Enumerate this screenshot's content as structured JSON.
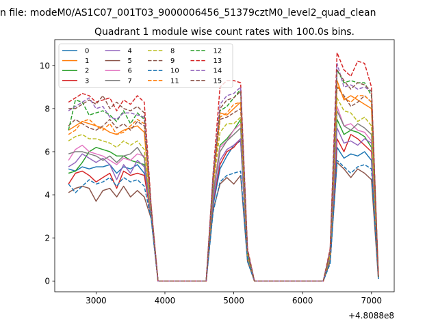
{
  "figure": {
    "suptitle": "n file: modeM0/AS1C07_001T03_9000006456_51379cztM0_level2_quad_clean",
    "title": "Quadrant 1 module wise count rates with 100.0s bins.",
    "offset_label": "+4.8088e8"
  },
  "chart_data": {
    "type": "line",
    "title": "Quadrant 1 module wise count rates with 100.0s bins.",
    "xlabel": "",
    "ylabel": "",
    "x_offset": 480880000,
    "xlim": [
      2400,
      7330
    ],
    "ylim": [
      -0.5,
      11.2
    ],
    "xticks": [
      3000,
      4000,
      5000,
      6000,
      7000
    ],
    "yticks": [
      0,
      2,
      4,
      6,
      8,
      10
    ],
    "xtick_labels": [
      "3000",
      "4000",
      "5000",
      "6000",
      "7000"
    ],
    "ytick_labels": [
      "0",
      "2",
      "4",
      "6",
      "8",
      "10"
    ],
    "grid": false,
    "legend_placement": "upper-left",
    "legend_columns": 4,
    "x": [
      2600,
      2700,
      2800,
      2900,
      3000,
      3100,
      3200,
      3300,
      3400,
      3500,
      3600,
      3700,
      3800,
      3900,
      4000,
      4100,
      4200,
      4300,
      4400,
      4500,
      4600,
      4700,
      4800,
      4900,
      5000,
      5100,
      5200,
      5300,
      5400,
      5500,
      5600,
      5700,
      5800,
      5900,
      6000,
      6100,
      6200,
      6300,
      6400,
      6500,
      6600,
      6700,
      6800,
      6900,
      7000,
      7100
    ],
    "series": [
      {
        "name": "0",
        "color": "#1f77b4",
        "dash": "solid",
        "values": [
          5.2,
          5.1,
          5.3,
          5.2,
          5.3,
          5.3,
          5.4,
          5.0,
          5.3,
          5.2,
          5.4,
          5.0,
          3.0,
          0,
          0,
          0,
          0,
          0,
          0,
          0,
          0,
          3.5,
          5.2,
          5.8,
          6.3,
          6.5,
          1.0,
          0,
          0,
          0,
          0,
          0,
          0,
          0,
          0,
          0,
          0,
          0,
          1.0,
          6.2,
          5.7,
          5.9,
          5.8,
          6.0,
          5.6,
          0.2
        ]
      },
      {
        "name": "1",
        "color": "#ff7f0e",
        "dash": "solid",
        "values": [
          7.0,
          7.2,
          7.4,
          7.3,
          7.2,
          7.1,
          6.9,
          6.8,
          7.0,
          7.1,
          7.2,
          6.9,
          3.2,
          0,
          0,
          0,
          0,
          0,
          0,
          0,
          0,
          4.5,
          7.8,
          7.7,
          8.0,
          8.3,
          1.2,
          0,
          0,
          0,
          0,
          0,
          0,
          0,
          0,
          0,
          0,
          0,
          1.3,
          9.3,
          8.4,
          8.6,
          8.4,
          8.2,
          8.0,
          0.2
        ]
      },
      {
        "name": "2",
        "color": "#2ca02c",
        "dash": "solid",
        "values": [
          5.0,
          5.1,
          5.5,
          6.0,
          6.2,
          6.1,
          6.0,
          5.8,
          5.8,
          5.6,
          5.5,
          5.4,
          3.1,
          0,
          0,
          0,
          0,
          0,
          0,
          0,
          0,
          4.0,
          6.3,
          6.6,
          7.0,
          7.5,
          1.1,
          0,
          0,
          0,
          0,
          0,
          0,
          0,
          0,
          0,
          0,
          0,
          1.1,
          7.5,
          6.8,
          7.0,
          6.9,
          6.7,
          6.2,
          0.2
        ]
      },
      {
        "name": "3",
        "color": "#d62728",
        "dash": "solid",
        "values": [
          4.5,
          5.0,
          5.1,
          4.9,
          4.6,
          4.8,
          5.0,
          4.3,
          5.1,
          4.9,
          5.0,
          4.9,
          3.0,
          0,
          0,
          0,
          0,
          0,
          0,
          0,
          0,
          3.7,
          5.4,
          6.0,
          6.2,
          6.6,
          1.0,
          0,
          0,
          0,
          0,
          0,
          0,
          0,
          0,
          0,
          0,
          0,
          1.0,
          6.6,
          6.0,
          6.8,
          6.6,
          6.3,
          6.0,
          0.2
        ]
      },
      {
        "name": "4",
        "color": "#9467bd",
        "dash": "solid",
        "values": [
          5.3,
          5.5,
          5.9,
          5.7,
          5.5,
          5.7,
          5.4,
          4.7,
          5.4,
          5.0,
          5.6,
          5.3,
          3.0,
          0,
          0,
          0,
          0,
          0,
          0,
          0,
          0,
          3.8,
          5.6,
          6.1,
          6.3,
          6.6,
          1.0,
          0,
          0,
          0,
          0,
          0,
          0,
          0,
          0,
          0,
          0,
          0,
          1.0,
          7.1,
          6.4,
          6.5,
          6.3,
          6.6,
          6.4,
          0.2
        ]
      },
      {
        "name": "5",
        "color": "#8c564b",
        "dash": "solid",
        "values": [
          4.1,
          4.3,
          4.4,
          4.3,
          3.7,
          4.2,
          4.3,
          3.9,
          4.4,
          3.9,
          4.2,
          3.9,
          2.9,
          0,
          0,
          0,
          0,
          0,
          0,
          0,
          0,
          3.3,
          4.5,
          4.8,
          4.5,
          4.9,
          0.9,
          0,
          0,
          0,
          0,
          0,
          0,
          0,
          0,
          0,
          0,
          0,
          0.9,
          5.5,
          5.2,
          4.8,
          5.2,
          5.0,
          4.7,
          0.1
        ]
      },
      {
        "name": "6",
        "color": "#e377c2",
        "dash": "solid",
        "values": [
          5.6,
          6.1,
          6.3,
          6.0,
          5.9,
          5.8,
          5.6,
          5.4,
          5.7,
          5.6,
          5.9,
          5.8,
          3.2,
          0,
          0,
          0,
          0,
          0,
          0,
          0,
          0,
          4.2,
          6.2,
          6.5,
          7.0,
          7.3,
          1.1,
          0,
          0,
          0,
          0,
          0,
          0,
          0,
          0,
          0,
          0,
          0,
          1.2,
          8.1,
          7.2,
          7.3,
          7.0,
          6.9,
          6.5,
          0.2
        ]
      },
      {
        "name": "7",
        "color": "#7f7f7f",
        "dash": "solid",
        "values": [
          5.9,
          6.0,
          6.0,
          5.9,
          5.8,
          5.6,
          5.8,
          5.5,
          5.8,
          5.9,
          6.2,
          5.7,
          3.0,
          0,
          0,
          0,
          0,
          0,
          0,
          0,
          0,
          4.1,
          6.0,
          6.5,
          6.8,
          7.1,
          1.1,
          0,
          0,
          0,
          0,
          0,
          0,
          0,
          0,
          0,
          0,
          0,
          1.1,
          7.9,
          7.2,
          7.0,
          7.3,
          7.1,
          6.8,
          0.2
        ]
      },
      {
        "name": "8",
        "color": "#bcbd22",
        "dash": "dashed",
        "values": [
          6.5,
          6.7,
          6.8,
          6.6,
          6.6,
          6.5,
          6.4,
          6.2,
          6.5,
          6.3,
          6.5,
          6.1,
          3.2,
          0,
          0,
          0,
          0,
          0,
          0,
          0,
          0,
          4.4,
          6.9,
          7.3,
          7.3,
          7.6,
          1.2,
          0,
          0,
          0,
          0,
          0,
          0,
          0,
          0,
          0,
          0,
          0,
          1.2,
          8.5,
          7.9,
          7.8,
          7.4,
          7.6,
          7.2,
          0.2
        ]
      },
      {
        "name": "9",
        "color": "#8c564b",
        "dash": "dashed",
        "values": [
          7.2,
          7.5,
          7.3,
          7.1,
          7.0,
          7.2,
          7.5,
          7.1,
          7.3,
          7.0,
          7.4,
          7.2,
          3.4,
          0,
          0,
          0,
          0,
          0,
          0,
          0,
          0,
          4.6,
          7.5,
          7.6,
          7.8,
          8.0,
          1.3,
          0,
          0,
          0,
          0,
          0,
          0,
          0,
          0,
          0,
          0,
          0,
          1.3,
          9.0,
          8.6,
          8.1,
          8.3,
          8.6,
          8.3,
          0.2
        ]
      },
      {
        "name": "10",
        "color": "#1f77b4",
        "dash": "dashed",
        "values": [
          4.5,
          4.1,
          4.4,
          4.7,
          4.5,
          4.6,
          4.8,
          4.4,
          4.8,
          4.6,
          4.7,
          4.4,
          2.9,
          0,
          0,
          0,
          0,
          0,
          0,
          0,
          0,
          3.2,
          4.6,
          4.9,
          5.0,
          5.1,
          0.9,
          0,
          0,
          0,
          0,
          0,
          0,
          0,
          0,
          0,
          0,
          0,
          0.8,
          5.6,
          5.3,
          5.0,
          5.3,
          5.4,
          5.2,
          0.1
        ]
      },
      {
        "name": "11",
        "color": "#ff7f0e",
        "dash": "dashed",
        "values": [
          6.8,
          7.0,
          7.4,
          7.5,
          7.2,
          7.0,
          7.3,
          6.8,
          6.9,
          7.2,
          7.5,
          7.3,
          3.3,
          0,
          0,
          0,
          0,
          0,
          0,
          0,
          0,
          4.6,
          7.6,
          7.8,
          8.2,
          8.3,
          1.3,
          0,
          0,
          0,
          0,
          0,
          0,
          0,
          0,
          0,
          0,
          0,
          1.3,
          9.1,
          8.5,
          8.3,
          8.6,
          8.6,
          8.3,
          0.2
        ]
      },
      {
        "name": "12",
        "color": "#2ca02c",
        "dash": "dashed",
        "values": [
          7.0,
          8.4,
          8.3,
          7.7,
          7.8,
          7.9,
          7.7,
          7.4,
          7.9,
          7.3,
          7.8,
          7.5,
          3.4,
          0,
          0,
          0,
          0,
          0,
          0,
          0,
          0,
          4.8,
          7.9,
          8.1,
          8.5,
          8.9,
          1.3,
          0,
          0,
          0,
          0,
          0,
          0,
          0,
          0,
          0,
          0,
          0,
          1.4,
          9.8,
          9.2,
          9.3,
          9.2,
          9.2,
          8.6,
          0.2
        ]
      },
      {
        "name": "13",
        "color": "#d62728",
        "dash": "dashed",
        "values": [
          8.3,
          8.5,
          8.7,
          8.6,
          8.3,
          8.4,
          8.5,
          7.9,
          8.4,
          8.2,
          8.6,
          8.3,
          3.5,
          0,
          0,
          0,
          0,
          0,
          0,
          0,
          0,
          5.0,
          9.0,
          9.3,
          9.3,
          9.2,
          1.5,
          0,
          0,
          0,
          0,
          0,
          0,
          0,
          0,
          0,
          0,
          0,
          1.5,
          10.6,
          9.8,
          9.5,
          10.2,
          10.1,
          9.0,
          0.2
        ]
      },
      {
        "name": "14",
        "color": "#9467bd",
        "dash": "dashed",
        "values": [
          7.9,
          8.1,
          8.3,
          8.5,
          8.0,
          8.1,
          7.6,
          7.5,
          7.8,
          7.8,
          7.7,
          7.6,
          3.3,
          0,
          0,
          0,
          0,
          0,
          0,
          0,
          0,
          4.9,
          8.2,
          8.6,
          8.7,
          9.0,
          1.4,
          0,
          0,
          0,
          0,
          0,
          0,
          0,
          0,
          0,
          0,
          0,
          1.4,
          10.1,
          9.0,
          9.1,
          8.9,
          9.0,
          8.8,
          0.2
        ]
      },
      {
        "name": "15",
        "color": "#8c564b",
        "dash": "dashed",
        "values": [
          8.0,
          8.0,
          8.2,
          8.4,
          8.2,
          8.6,
          8.0,
          8.3,
          8.0,
          7.9,
          8.1,
          7.8,
          3.4,
          0,
          0,
          0,
          0,
          0,
          0,
          0,
          0,
          4.8,
          8.0,
          8.4,
          8.5,
          8.8,
          1.4,
          0,
          0,
          0,
          0,
          0,
          0,
          0,
          0,
          0,
          0,
          0,
          1.4,
          9.8,
          9.3,
          8.9,
          9.2,
          9.1,
          8.8,
          0.2
        ]
      }
    ]
  }
}
